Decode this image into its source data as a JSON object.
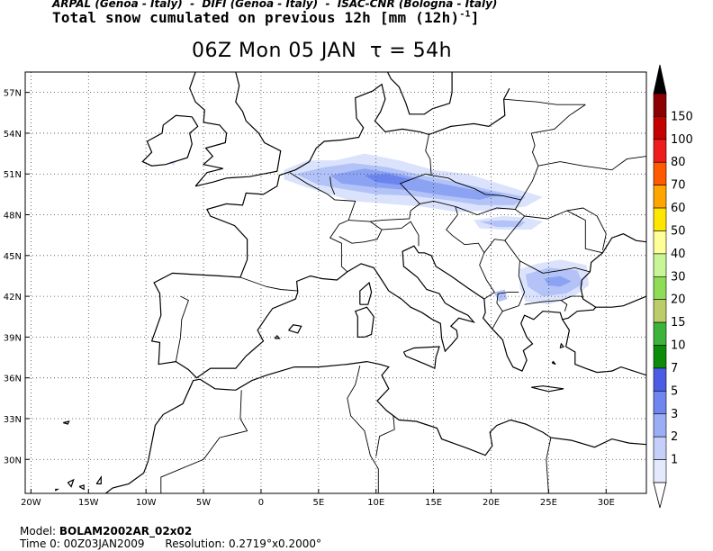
{
  "header": {
    "credits": "ARPAL (Genoa - Italy)  -  DIFI (Genoa - Italy)  -  ISAC-CNR (Bologna - Italy)",
    "field_title": "Total snow cumulated on previous 12h [mm (12h)",
    "field_exponent": "-1",
    "field_close": "]"
  },
  "map_title": "06Z Mon 05 JAN  τ = 54h",
  "axes": {
    "lat_labels": [
      "57N",
      "54N",
      "51N",
      "48N",
      "45N",
      "42N",
      "39N",
      "36N",
      "33N",
      "30N"
    ],
    "lat_values": [
      57,
      54,
      51,
      48,
      45,
      42,
      39,
      36,
      33,
      30
    ],
    "lon_labels": [
      "20W",
      "15W",
      "10W",
      "5W",
      "0",
      "5E",
      "10E",
      "15E",
      "20E",
      "25E",
      "30E"
    ],
    "lon_values": [
      -20,
      -15,
      -10,
      -5,
      0,
      5,
      10,
      15,
      20,
      25,
      30
    ],
    "lat_range": [
      27.5,
      58.5
    ],
    "lon_range": [
      -20.5,
      33.5
    ],
    "grid": "dotted"
  },
  "legend": {
    "labels": [
      "150",
      "100",
      "80",
      "70",
      "60",
      "50",
      "40",
      "30",
      "20",
      "15",
      "10",
      "7",
      "5",
      "3",
      "2",
      "1"
    ],
    "colors": [
      "#8b0000",
      "#c40000",
      "#ee1c1c",
      "#ff5a00",
      "#ffa500",
      "#ffe600",
      "#ffff99",
      "#c8f598",
      "#8fdc57",
      "#bccc68",
      "#3cb43c",
      "#0a8c0a",
      "#4a5ce6",
      "#6f86f0",
      "#9aaef5",
      "#c4d0fa",
      "#e4eafd"
    ],
    "top_arrow_color": "#000000",
    "bottom_arrow_color": "#ffffff"
  },
  "snow_areas_color": [
    "#dbe3fc",
    "#b3c3f8",
    "#8ca3f3",
    "#6b84ee"
  ],
  "footer": {
    "model_label": "Model: ",
    "model_value": "BOLAM2002AR_02x02",
    "time_label": "Time 0: 00Z03JAN2009",
    "resolution_label": "Resolution: 0.2719°x0.2000°"
  }
}
